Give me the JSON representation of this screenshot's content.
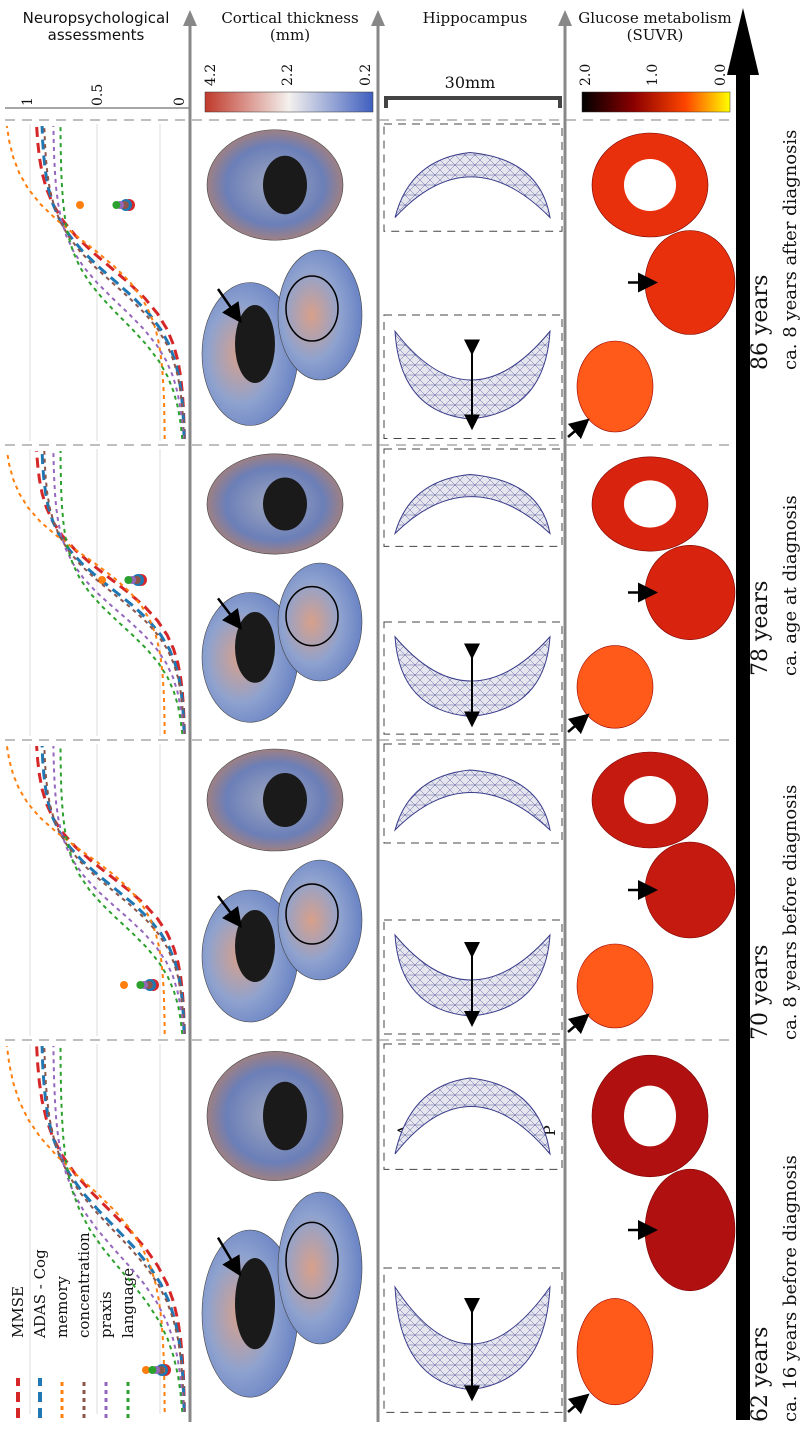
{
  "headers": {
    "neuro": "Neuropsychological assessments",
    "cortical": "Cortical thickness (mm)",
    "hippo": "Hippocampus",
    "glucose": "Glucose metabolism (SUVR)"
  },
  "neuro_ticks": [
    "1",
    "0.5",
    "0"
  ],
  "cortical_ticks": [
    "4.2",
    "2.2",
    "0.2"
  ],
  "glucose_ticks": [
    "2.0",
    "1.0",
    "0.0"
  ],
  "scale_bar": "30mm",
  "hippo_axis": {
    "anterior": "A",
    "posterior": "P"
  },
  "legend": [
    {
      "label": "MMSE",
      "color": "#d62728",
      "dash": "10,6",
      "width": 3
    },
    {
      "label": "ADAS - Cog",
      "color": "#1f77b4",
      "dash": "10,6",
      "width": 3
    },
    {
      "label": "memory",
      "color": "#ff7f0e",
      "dash": "4,4",
      "width": 2
    },
    {
      "label": "concentration",
      "color": "#8c564b",
      "dash": "4,4",
      "width": 2
    },
    {
      "label": "praxis",
      "color": "#9467bd",
      "dash": "4,4",
      "width": 2
    },
    {
      "label": "language",
      "color": "#2ca02c",
      "dash": "4,4",
      "width": 2
    }
  ],
  "timepoints": [
    {
      "age": "62 years",
      "note": "ca. 16 years before diagnosis"
    },
    {
      "age": "70 years",
      "note": "ca. 8 years before diagnosis"
    },
    {
      "age": "78 years",
      "note": "ca. age at diagnosis"
    },
    {
      "age": "86 years",
      "note": "ca. 8 years after diagnosis"
    }
  ],
  "colors": {
    "axis": "#888888",
    "cortical_scale": [
      "#c0392b",
      "#f4f4f4",
      "#3f5fbf"
    ],
    "glucose_scale": [
      "#000000",
      "#8b0000",
      "#ff4500",
      "#ffff00"
    ]
  }
}
